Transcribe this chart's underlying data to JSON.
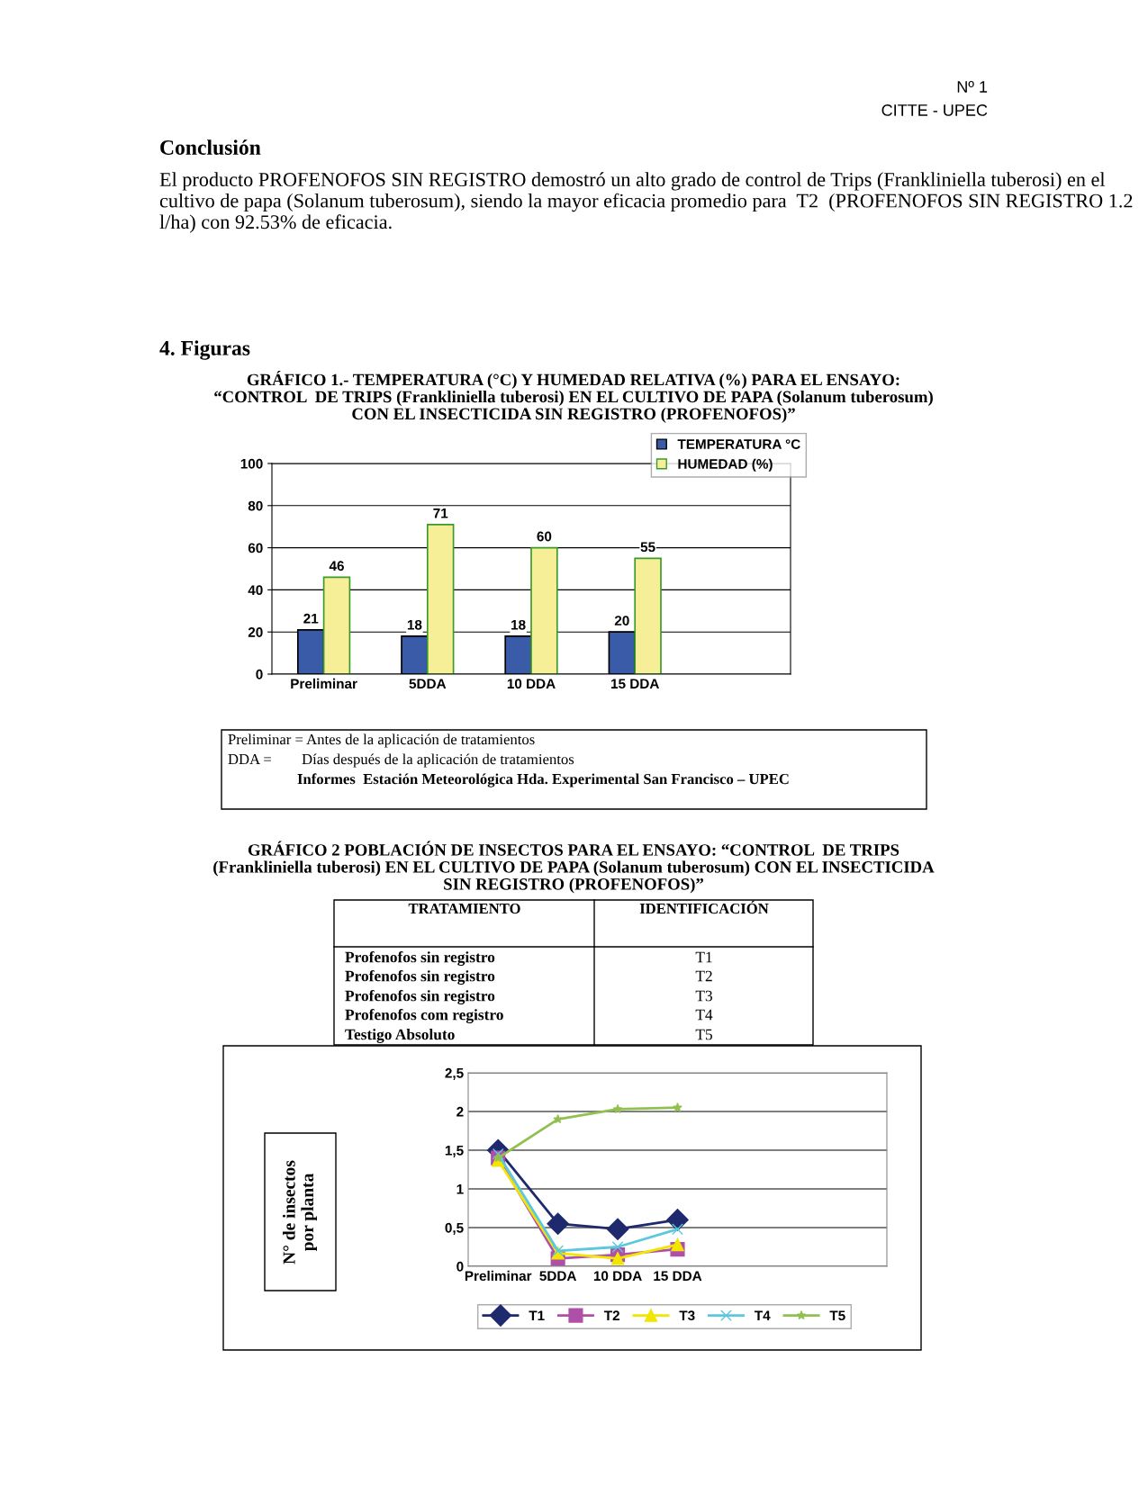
{
  "chart_data": [
    {
      "type": "bar",
      "title": "GRÁFICO 1.- TEMPERATURA (°C) Y HUMEDAD RELATIVA (%) PARA EL ENSAYO:\n“CONTROL  DE TRIPS (Frankliniella tuberosi) EN EL CULTIVO DE PAPA (Solanum tuberosum)\nCON EL INSECTICIDA SIN REGISTRO (PROFENOFOS)”",
      "annotations": [
        "Nº 1",
        "CITTE - UPEC",
        "Conclusión",
        "El producto PROFENOFOS SIN REGISTRO demostró un alto grado de control de Trips (Frankliniella tuberosi) en el cultivo de papa (Solanum tuberosum), siendo la mayor eficacia promedio para  T2  (PROFENOFOS SIN REGISTRO 1.2 l/ha) con 92.53% de eficacia.",
        "4. Figuras",
        "Preliminar = Antes de la aplicación de tratamientos",
        "DDA =        Días después de la aplicación de tratamientos",
        "Informes  Estación Meteorológica Hda. Experimental San Francisco – UPEC"
      ],
      "categories": [
        "Preliminar",
        "5DDA",
        "10 DDA",
        "15 DDA",
        null
      ],
      "series": [
        {
          "name": "TEMPERATURA °C",
          "color": "#3a5ba8",
          "values": [
            21,
            18,
            18,
            20,
            null
          ]
        },
        {
          "name": "HUMEDAD (%)",
          "color": "#f7ef98",
          "values": [
            46,
            71,
            60,
            55,
            null
          ]
        }
      ],
      "ylim": [
        0,
        100
      ],
      "yticks": [
        0,
        20,
        40,
        60,
        80,
        100
      ],
      "grid": "y",
      "legend": "top right",
      "data_labels": true
    },
    {
      "type": "line",
      "title": "GRÁFICO 2 POBLACIÓN DE INSECTOS PARA EL ENSAYO: “CONTROL  DE TRIPS\n(Frankliniella tuberosi) EN EL CULTIVO DE PAPA (Solanum tuberosum) CON EL INSECTICIDA\nSIN REGISTRO (PROFENOFOS)”",
      "ylabel": "N° de insectos\npor planta",
      "annotations": [
        "TRATAMIENTO",
        "IDENTIFICACIÓN",
        "Profenofos sin registro",
        "T1",
        "Profenofos sin registro",
        "T2",
        "Profenofos sin registro",
        "T3",
        "Profenofos com registro",
        "T4",
        "Testigo Absoluto",
        "T5"
      ],
      "categories": [
        "Preliminar",
        "5DDA",
        "10 DDA",
        "15 DDA",
        null,
        null,
        null
      ],
      "series": [
        {
          "name": "T1",
          "color": "#1f2a6e",
          "marker": "diamond",
          "values": [
            1.5,
            0.55,
            0.48,
            0.6,
            null,
            null,
            null
          ]
        },
        {
          "name": "T2",
          "color": "#b04fa8",
          "marker": "square",
          "values": [
            1.4,
            0.1,
            0.15,
            0.22,
            null,
            null,
            null
          ]
        },
        {
          "name": "T3",
          "color": "#f2e600",
          "marker": "triangle",
          "values": [
            1.37,
            0.17,
            0.1,
            0.28,
            null,
            null,
            null
          ]
        },
        {
          "name": "T4",
          "color": "#5bc8dc",
          "marker": "cross",
          "values": [
            1.45,
            0.2,
            0.25,
            0.48,
            null,
            null,
            null
          ]
        },
        {
          "name": "T5",
          "color": "#92c050",
          "marker": "star",
          "values": [
            1.4,
            1.9,
            2.03,
            2.05,
            null,
            null,
            null
          ]
        }
      ],
      "ylim": [
        0,
        2.5
      ],
      "yticks": [
        0,
        {
          "value": 0.5,
          "label": "0,5"
        },
        1,
        {
          "value": 1.5,
          "label": "1,5"
        },
        2,
        {
          "value": 2.5,
          "label": "2,5"
        }
      ],
      "grid": "y",
      "legend": "bottom",
      "line_style": "solid"
    }
  ]
}
